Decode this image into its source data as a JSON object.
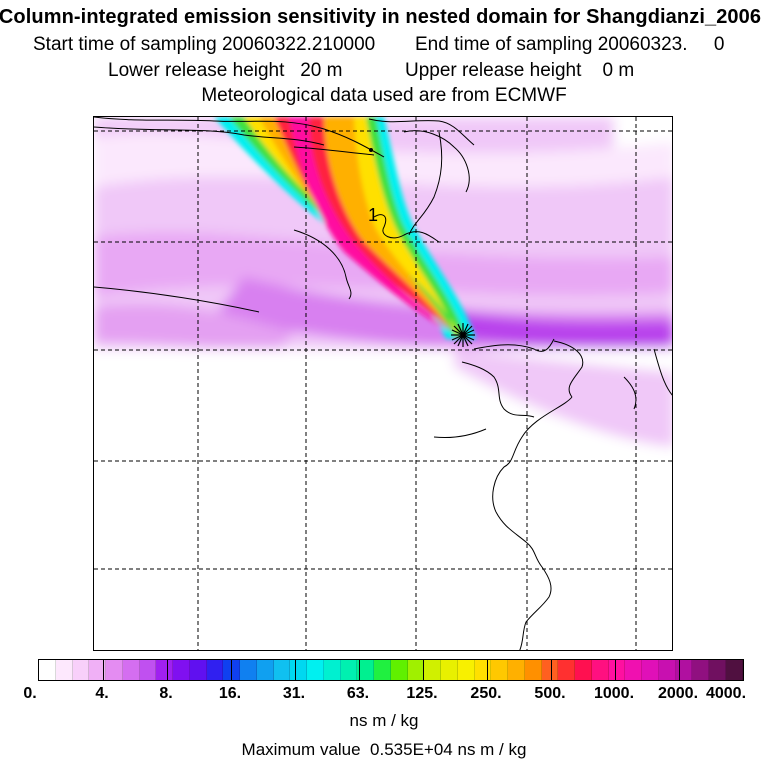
{
  "header": {
    "title": "Column-integrated emission sensitivity in nested domain for Shangdianzi_2006",
    "start_label": "Start time of sampling",
    "start_value": "20060322.210000",
    "end_label": "End time of sampling",
    "end_value": "20060323.     0",
    "lower_label": "Lower release height",
    "lower_value": "20 m",
    "upper_label": "Upper release height",
    "upper_value": "0 m",
    "met": "Meteorological data used are from ECMWF"
  },
  "map": {
    "source_marker": "release-site-star",
    "plume_colors": {
      "weak": "#f0c8f8",
      "light": "#e8a8f4",
      "medium": "#d880f0",
      "cyan": "#00f0f0",
      "green": "#40e040",
      "yellow": "#ffe000",
      "orange": "#ffb000",
      "red": "#ff2040"
    }
  },
  "colorbar": {
    "tick_labels": [
      "0.",
      "4.",
      "8.",
      "16.",
      "31.",
      "63.",
      "125.",
      "250.",
      "500.",
      "1000.",
      "2000.",
      "4000."
    ],
    "colors": [
      "#ffffff",
      "#fde8fd",
      "#f8d0fa",
      "#f0b0f6",
      "#e48cf2",
      "#d46ef0",
      "#c050f0",
      "#a020f0",
      "#8010f0",
      "#6010f0",
      "#3020f0",
      "#1040f0",
      "#1080f0",
      "#10a0f0",
      "#10c0f0",
      "#00d8f0",
      "#00f0f0",
      "#00f0d0",
      "#00f0b0",
      "#00f090",
      "#20f040",
      "#60f000",
      "#a0f000",
      "#d0f000",
      "#e8f000",
      "#f8f000",
      "#ffe000",
      "#ffc800",
      "#ffb000",
      "#ff9000",
      "#ff6020",
      "#ff3030",
      "#ff1050",
      "#ff1080",
      "#ff10a0",
      "#f010b0",
      "#e010b8",
      "#c810b0",
      "#b010a0",
      "#901080",
      "#701060",
      "#501040"
    ],
    "units": "ns m / kg",
    "max_label": "Maximum value",
    "max_value": "0.535E+04 ns m / kg"
  }
}
